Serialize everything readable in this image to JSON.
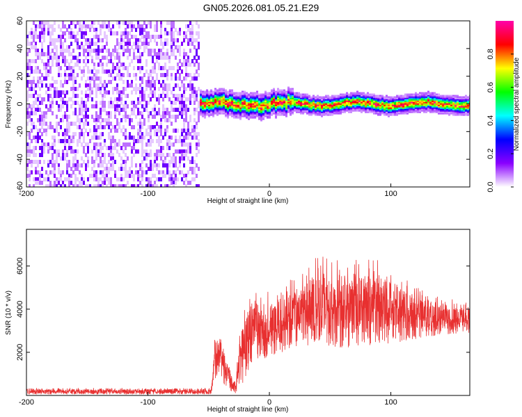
{
  "title": "GN05.2026.081.05.21.E29",
  "chart_data": [
    {
      "type": "heatmap",
      "xlabel": "Height of straight line (km)",
      "ylabel": "Frequency (Hz)",
      "xlim": [
        -200,
        165
      ],
      "ylim": [
        -60,
        60
      ],
      "x_ticks": [
        -200,
        -100,
        0,
        100
      ],
      "y_ticks": [
        -60,
        -40,
        -20,
        0,
        20,
        40,
        60
      ],
      "grid": false,
      "regions": [
        {
          "name": "broadband-noise",
          "x_range": [
            -200,
            -58
          ],
          "y_range": [
            -60,
            60
          ],
          "amplitude": 0.15
        },
        {
          "name": "signal-band",
          "x_range": [
            -58,
            165
          ],
          "center_frequency": 0,
          "half_width": 5,
          "peak_amplitude": 0.95
        }
      ],
      "colorbar": {
        "label": "Normalized spectral amplitude",
        "range": [
          0,
          1
        ],
        "ticks": [
          0.0,
          0.2,
          0.4,
          0.6,
          0.8
        ],
        "colors": [
          "#ffffff",
          "#8a00ff",
          "#0000ff",
          "#00ffff",
          "#00ff00",
          "#ffff00",
          "#ff0000",
          "#ff00aa"
        ]
      }
    },
    {
      "type": "line",
      "xlabel": "Height of straight line (km)",
      "ylabel": "SNR (10 * v/v)",
      "xlim": [
        -200,
        165
      ],
      "ylim": [
        0,
        7700
      ],
      "x_ticks": [
        -200,
        -100,
        0,
        100
      ],
      "y_ticks": [
        2000,
        4000,
        6000
      ],
      "grid": false,
      "series_color": "#e83030",
      "envelope": [
        {
          "x": -200,
          "low": 50,
          "high": 350
        },
        {
          "x": -48,
          "low": 50,
          "high": 350
        },
        {
          "x": -45,
          "low": 800,
          "high": 2800
        },
        {
          "x": -40,
          "low": 700,
          "high": 3200
        },
        {
          "x": -35,
          "low": 300,
          "high": 1900
        },
        {
          "x": -28,
          "low": 100,
          "high": 700
        },
        {
          "x": -22,
          "low": 500,
          "high": 4200
        },
        {
          "x": -15,
          "low": 1500,
          "high": 5000
        },
        {
          "x": 0,
          "low": 1800,
          "high": 4800
        },
        {
          "x": 20,
          "low": 2200,
          "high": 5500
        },
        {
          "x": 40,
          "low": 2400,
          "high": 6500
        },
        {
          "x": 60,
          "low": 2200,
          "high": 6400
        },
        {
          "x": 80,
          "low": 2300,
          "high": 6500
        },
        {
          "x": 100,
          "low": 2400,
          "high": 6000
        },
        {
          "x": 120,
          "low": 2600,
          "high": 5200
        },
        {
          "x": 140,
          "low": 2800,
          "high": 4600
        },
        {
          "x": 165,
          "low": 2900,
          "high": 4300
        }
      ]
    }
  ]
}
